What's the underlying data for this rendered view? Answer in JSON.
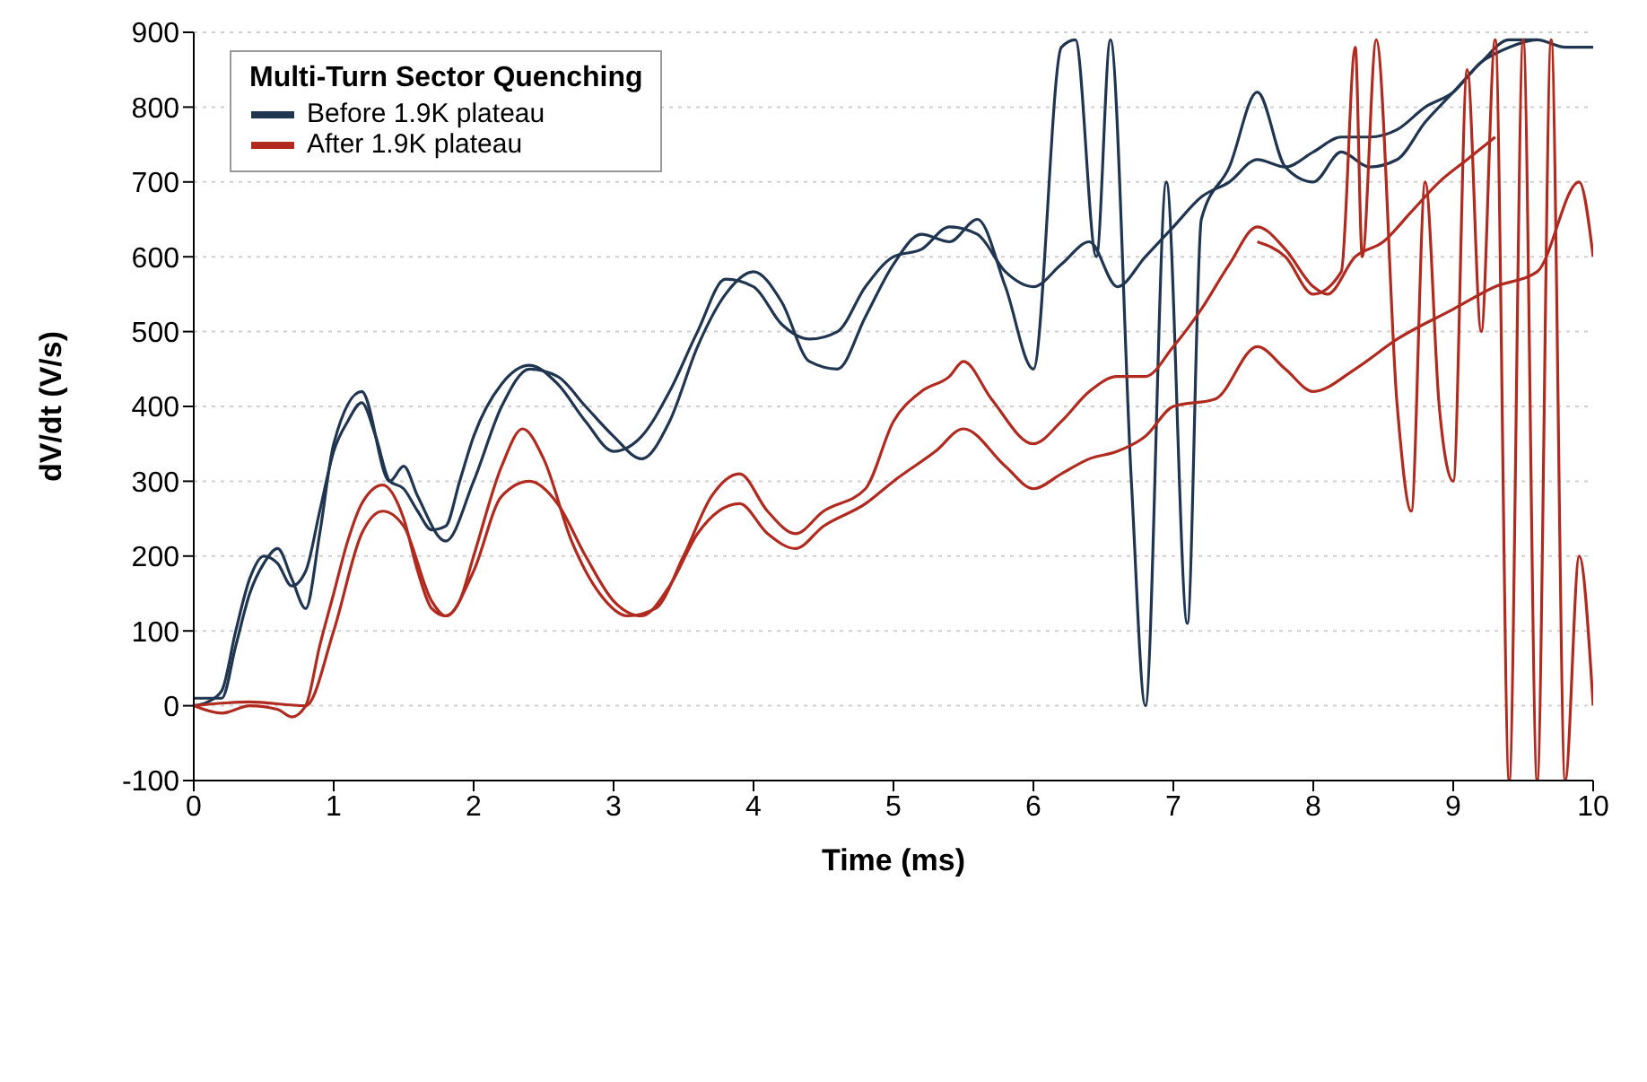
{
  "chart_data": {
    "type": "line",
    "xlabel": "Time (ms)",
    "ylabel": "dV/dt  (V/s)",
    "legend_title": "Multi-Turn Sector Quenching",
    "legend": "top left",
    "grid": "y",
    "marker": "none",
    "line_style": "solid",
    "xlim": [
      0,
      10
    ],
    "xticks": [
      0,
      1,
      2,
      3,
      4,
      5,
      6,
      7,
      8,
      9,
      10
    ],
    "ylim": [
      -100,
      900
    ],
    "yticks": [
      -100,
      0,
      100,
      200,
      300,
      400,
      500,
      600,
      700,
      800,
      900
    ],
    "series": [
      {
        "name": "Before 1.9K plateau",
        "color": "#1f3550",
        "x": [
          0,
          0.1,
          0.2,
          0.3,
          0.4,
          0.5,
          0.6,
          0.7,
          0.8,
          0.9,
          1.0,
          1.1,
          1.2,
          1.3,
          1.4,
          1.5,
          1.6,
          1.7,
          1.8,
          1.9,
          2.0,
          2.2,
          2.4,
          2.6,
          2.8,
          3.0,
          3.2,
          3.4,
          3.6,
          3.8,
          4.0,
          4.2,
          4.4,
          4.6,
          4.8,
          5.0,
          5.2,
          5.4,
          5.6,
          5.8,
          6.0,
          6.2,
          6.4,
          6.6,
          6.8,
          7.0,
          7.2,
          7.4,
          7.6,
          7.8,
          8.0,
          8.2,
          8.4,
          8.6,
          8.8,
          9.0,
          9.2,
          9.4,
          9.6,
          9.8,
          10
        ],
        "values": [
          0,
          5,
          20,
          100,
          170,
          200,
          190,
          160,
          180,
          260,
          340,
          380,
          405,
          360,
          300,
          290,
          260,
          235,
          240,
          300,
          360,
          430,
          455,
          430,
          380,
          340,
          360,
          420,
          500,
          570,
          560,
          510,
          490,
          500,
          560,
          600,
          610,
          640,
          630,
          580,
          560,
          590,
          620,
          560,
          600,
          640,
          680,
          700,
          730,
          720,
          740,
          760,
          760,
          770,
          800,
          820,
          860,
          880,
          890,
          880,
          880
        ]
      },
      {
        "color": "#1f3550",
        "x": [
          0,
          0.2,
          0.3,
          0.4,
          0.5,
          0.6,
          0.7,
          0.8,
          0.9,
          1.0,
          1.2,
          1.4,
          1.5,
          1.6,
          1.8,
          2.0,
          2.2,
          2.4,
          2.6,
          2.8,
          3.0,
          3.2,
          3.4,
          3.6,
          3.8,
          4.0,
          4.2,
          4.4,
          4.6,
          4.8,
          5.0,
          5.2,
          5.4,
          5.6,
          5.8,
          6.0,
          6.2,
          6.3,
          6.45,
          6.55,
          6.7,
          6.8,
          6.95,
          7.1,
          7.2,
          7.4,
          7.6,
          7.8,
          8.0,
          8.2,
          8.4,
          8.6,
          8.8,
          9.0,
          9.2,
          9.4,
          9.6
        ],
        "values": [
          10,
          10,
          80,
          150,
          190,
          210,
          170,
          130,
          230,
          350,
          420,
          300,
          320,
          280,
          220,
          300,
          400,
          450,
          440,
          400,
          360,
          330,
          380,
          480,
          550,
          580,
          540,
          460,
          450,
          520,
          590,
          630,
          620,
          650,
          560,
          450,
          880,
          890,
          600,
          890,
          300,
          0,
          700,
          110,
          650,
          720,
          820,
          720,
          700,
          740,
          720,
          730,
          780,
          820,
          860,
          890,
          890
        ]
      },
      {
        "name": "After 1.9K plateau",
        "color": "#b02a1f",
        "x": [
          0,
          0.2,
          0.4,
          0.6,
          0.7,
          0.8,
          0.9,
          1.0,
          1.1,
          1.2,
          1.35,
          1.5,
          1.6,
          1.7,
          1.8,
          1.9,
          2.0,
          2.2,
          2.35,
          2.5,
          2.7,
          2.9,
          3.1,
          3.3,
          3.5,
          3.7,
          3.9,
          4.1,
          4.3,
          4.5,
          4.8,
          5.0,
          5.2,
          5.4,
          5.5,
          5.7,
          6.0,
          6.2,
          6.4,
          6.6,
          6.8,
          7.0,
          7.2,
          7.4,
          7.6,
          7.8,
          8.0,
          8.1,
          8.3,
          8.5,
          8.7,
          8.9,
          9.1,
          9.3
        ],
        "values": [
          0,
          -10,
          0,
          -5,
          -15,
          0,
          80,
          150,
          220,
          270,
          295,
          250,
          180,
          130,
          120,
          140,
          200,
          320,
          370,
          330,
          220,
          150,
          120,
          130,
          200,
          280,
          310,
          260,
          230,
          260,
          290,
          380,
          420,
          440,
          460,
          410,
          350,
          380,
          420,
          440,
          440,
          480,
          530,
          590,
          640,
          610,
          560,
          550,
          600,
          620,
          660,
          700,
          730,
          760
        ]
      },
      {
        "color": "#b02a1f",
        "x": [
          0,
          0.4,
          0.8,
          1.0,
          1.2,
          1.35,
          1.5,
          1.7,
          1.8,
          2.0,
          2.2,
          2.4,
          2.6,
          2.8,
          3.0,
          3.2,
          3.4,
          3.6,
          3.9,
          4.1,
          4.3,
          4.5,
          4.8,
          5.0,
          5.3,
          5.5,
          5.8,
          6.0,
          6.2,
          6.4,
          6.6,
          6.8,
          7.0,
          7.3,
          7.6,
          7.8,
          8.0,
          8.3,
          8.6,
          9.0,
          9.3,
          9.6,
          9.9,
          10
        ],
        "values": [
          0,
          5,
          0,
          100,
          230,
          260,
          240,
          140,
          120,
          180,
          280,
          300,
          270,
          200,
          140,
          120,
          160,
          230,
          270,
          230,
          210,
          240,
          270,
          300,
          340,
          370,
          320,
          290,
          310,
          330,
          340,
          360,
          400,
          410,
          480,
          450,
          420,
          450,
          490,
          530,
          560,
          580,
          700,
          600
        ]
      },
      {
        "color": "#b02a1f",
        "x": [
          7.6,
          7.8,
          8.0,
          8.2,
          8.3,
          8.35,
          8.45,
          8.6,
          8.7,
          8.8,
          8.9,
          9.0,
          9.1,
          9.2,
          9.3,
          9.4,
          9.5,
          9.6,
          9.7,
          9.8,
          9.9,
          10
        ],
        "values": [
          620,
          600,
          550,
          580,
          880,
          600,
          890,
          400,
          260,
          700,
          400,
          300,
          850,
          500,
          890,
          -100,
          890,
          -100,
          890,
          -100,
          200,
          0
        ]
      }
    ]
  }
}
